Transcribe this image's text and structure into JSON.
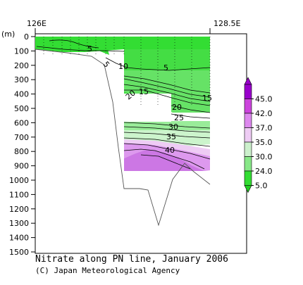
{
  "chart_data": {
    "type": "contour",
    "title": "Nitrate along PN line, January 2006",
    "credit": "(C) Japan Meteorological Agency",
    "x_ticks": [
      "126E",
      "128.5E"
    ],
    "y_unit": "(m)",
    "y_ticks": [
      0,
      100,
      200,
      300,
      400,
      500,
      600,
      700,
      800,
      900,
      1000,
      1100,
      1200,
      1300,
      1400,
      1500
    ],
    "ylim": [
      0,
      1500
    ],
    "contour_labels": [
      "5",
      "5",
      "10",
      "5",
      "15",
      "20",
      "15",
      "20",
      "25",
      "30",
      "35",
      "40"
    ],
    "colorbar": {
      "labels": [
        "45.0",
        "42.0",
        "37.0",
        "35.0",
        "30.0",
        "24.0",
        "5.0"
      ],
      "colors": [
        "#9900cc",
        "#cc44dd",
        "#dd88ee",
        "#eeccf4",
        "#ccf0cc",
        "#88e888",
        "#33dd33"
      ]
    }
  }
}
